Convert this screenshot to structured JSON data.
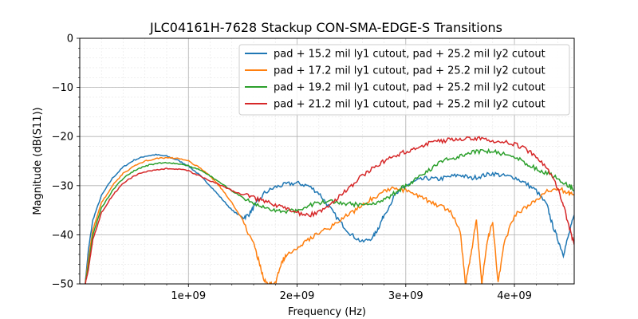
{
  "chart_data": {
    "type": "line",
    "title": "JLC04161H-7628 Stackup CON-SMA-EDGE-S Transitions",
    "xlabel": "Frequency (Hz)",
    "ylabel": "Magnitude (dB(S11))",
    "xlim": [
      0,
      4550000000
    ],
    "ylim": [
      -50,
      0
    ],
    "x_ticks": [
      1000000000,
      2000000000,
      3000000000,
      4000000000
    ],
    "x_tick_labels": [
      "1e+09",
      "2e+09",
      "3e+09",
      "4e+09"
    ],
    "y_ticks": [
      0,
      -10,
      -20,
      -30,
      -40,
      -50
    ],
    "y_tick_labels": [
      "0",
      "−10",
      "−20",
      "−30",
      "−40",
      "−50"
    ],
    "grid": "major and minor",
    "legend_position": "top-right",
    "series": [
      {
        "name": "pad + 15.2 mil ly1 cutout, pad + 25.2 mil ly2 cutout",
        "color": "#1f77b4",
        "x": [
          50000000.0,
          80000000.0,
          120000000.0,
          200000000.0,
          300000000.0,
          400000000.0,
          500000000.0,
          600000000.0,
          700000000.0,
          800000000.0,
          900000000.0,
          1000000000.0,
          1100000000.0,
          1200000000.0,
          1300000000.0,
          1400000000.0,
          1500000000.0,
          1550000000.0,
          1600000000.0,
          1700000000.0,
          1800000000.0,
          1900000000.0,
          2000000000.0,
          2100000000.0,
          2200000000.0,
          2300000000.0,
          2400000000.0,
          2500000000.0,
          2600000000.0,
          2700000000.0,
          2750000000.0,
          2800000000.0,
          2900000000.0,
          3000000000.0,
          3100000000.0,
          3200000000.0,
          3300000000.0,
          3400000000.0,
          3500000000.0,
          3600000000.0,
          3700000000.0,
          3800000000.0,
          3900000000.0,
          4000000000.0,
          4100000000.0,
          4200000000.0,
          4300000000.0,
          4350000000.0,
          4400000000.0,
          4450000000.0,
          4500000000.0,
          4550000000.0
        ],
        "y": [
          -50,
          -43,
          -37,
          -32,
          -28.5,
          -26.2,
          -24.8,
          -24.0,
          -23.7,
          -24.0,
          -24.8,
          -26.0,
          -27.8,
          -30.0,
          -32.5,
          -35.0,
          -36.5,
          -36.0,
          -34.5,
          -31.5,
          -30.3,
          -29.7,
          -29.5,
          -30.0,
          -31.5,
          -34.5,
          -37.5,
          -40.0,
          -41.5,
          -40.5,
          -38.5,
          -36.0,
          -32.0,
          -30.0,
          -29.0,
          -28.5,
          -28.7,
          -28.2,
          -27.8,
          -28.5,
          -28.0,
          -27.5,
          -28.0,
          -28.3,
          -29.5,
          -31.0,
          -34.0,
          -38.0,
          -41.0,
          -44.0,
          -40.0,
          -36.0
        ]
      },
      {
        "name": "pad + 17.2 mil ly1 cutout, pad + 25.2 mil ly2 cutout",
        "color": "#ff7f0e",
        "x": [
          50000000.0,
          80000000.0,
          120000000.0,
          200000000.0,
          300000000.0,
          400000000.0,
          500000000.0,
          600000000.0,
          700000000.0,
          800000000.0,
          900000000.0,
          1000000000.0,
          1100000000.0,
          1200000000.0,
          1300000000.0,
          1400000000.0,
          1500000000.0,
          1600000000.0,
          1650000000.0,
          1700000000.0,
          1750000000.0,
          1800000000.0,
          1850000000.0,
          1900000000.0,
          2000000000.0,
          2100000000.0,
          2200000000.0,
          2300000000.0,
          2400000000.0,
          2500000000.0,
          2600000000.0,
          2700000000.0,
          2800000000.0,
          2900000000.0,
          3000000000.0,
          3100000000.0,
          3200000000.0,
          3300000000.0,
          3400000000.0,
          3500000000.0,
          3550000000.0,
          3600000000.0,
          3650000000.0,
          3700000000.0,
          3750000000.0,
          3800000000.0,
          3850000000.0,
          3900000000.0,
          4000000000.0,
          4100000000.0,
          4200000000.0,
          4300000000.0,
          4400000000.0,
          4500000000.0,
          4550000000.0
        ],
        "y": [
          -50,
          -45,
          -39,
          -33.5,
          -30.0,
          -27.5,
          -26.0,
          -25.0,
          -24.5,
          -24.3,
          -24.4,
          -25.0,
          -26.3,
          -28.0,
          -30.5,
          -33.5,
          -37.0,
          -42.0,
          -45.5,
          -49.5,
          -50,
          -50,
          -46.0,
          -44.0,
          -42.5,
          -41.0,
          -39.5,
          -38.5,
          -37.0,
          -35.5,
          -34.0,
          -32.5,
          -31.0,
          -30.5,
          -31.0,
          -32.0,
          -33.0,
          -34.0,
          -35.0,
          -39.0,
          -50,
          -44.0,
          -37.0,
          -50,
          -41.0,
          -37.5,
          -50,
          -42.0,
          -36.0,
          -34.5,
          -33.0,
          -31.0,
          -30.5,
          -31.5,
          -32.0
        ]
      },
      {
        "name": "pad + 19.2 mil ly1 cutout, pad + 25.2 mil ly2 cutout",
        "color": "#2ca02c",
        "x": [
          50000000.0,
          80000000.0,
          120000000.0,
          200000000.0,
          300000000.0,
          400000000.0,
          500000000.0,
          600000000.0,
          700000000.0,
          800000000.0,
          900000000.0,
          1000000000.0,
          1100000000.0,
          1200000000.0,
          1300000000.0,
          1400000000.0,
          1500000000.0,
          1600000000.0,
          1700000000.0,
          1800000000.0,
          1900000000.0,
          2000000000.0,
          2100000000.0,
          2200000000.0,
          2300000000.0,
          2400000000.0,
          2500000000.0,
          2600000000.0,
          2700000000.0,
          2800000000.0,
          2900000000.0,
          3000000000.0,
          3100000000.0,
          3200000000.0,
          3300000000.0,
          3400000000.0,
          3500000000.0,
          3600000000.0,
          3700000000.0,
          3800000000.0,
          3900000000.0,
          4000000000.0,
          4100000000.0,
          4200000000.0,
          4300000000.0,
          4400000000.0,
          4500000000.0,
          4550000000.0
        ],
        "y": [
          -50,
          -46,
          -40,
          -34.5,
          -31.0,
          -28.5,
          -27.0,
          -26.0,
          -25.5,
          -25.3,
          -25.5,
          -26.0,
          -26.8,
          -28.0,
          -29.5,
          -31.0,
          -32.5,
          -33.8,
          -34.5,
          -35.0,
          -35.3,
          -35.0,
          -34.0,
          -33.5,
          -33.3,
          -33.5,
          -33.8,
          -33.8,
          -33.5,
          -33.0,
          -31.5,
          -30.0,
          -28.5,
          -27.0,
          -25.5,
          -24.5,
          -24.0,
          -23.3,
          -23.0,
          -23.0,
          -23.5,
          -24.0,
          -25.5,
          -26.5,
          -27.5,
          -28.5,
          -30.0,
          -31.0
        ]
      },
      {
        "name": "pad + 21.2 mil ly1 cutout, pad + 25.2 mil ly2 cutout",
        "color": "#d62728",
        "x": [
          50000000.0,
          80000000.0,
          120000000.0,
          200000000.0,
          300000000.0,
          400000000.0,
          500000000.0,
          600000000.0,
          700000000.0,
          800000000.0,
          900000000.0,
          1000000000.0,
          1100000000.0,
          1200000000.0,
          1300000000.0,
          1400000000.0,
          1500000000.0,
          1600000000.0,
          1700000000.0,
          1800000000.0,
          1900000000.0,
          2000000000.0,
          2100000000.0,
          2200000000.0,
          2300000000.0,
          2400000000.0,
          2500000000.0,
          2600000000.0,
          2700000000.0,
          2800000000.0,
          2900000000.0,
          3000000000.0,
          3100000000.0,
          3200000000.0,
          3300000000.0,
          3400000000.0,
          3500000000.0,
          3600000000.0,
          3700000000.0,
          3800000000.0,
          3900000000.0,
          4000000000.0,
          4100000000.0,
          4200000000.0,
          4300000000.0,
          4400000000.0,
          4450000000.0,
          4500000000.0,
          4550000000.0
        ],
        "y": [
          -50,
          -47,
          -41,
          -35.5,
          -32.0,
          -29.5,
          -28.0,
          -27.2,
          -26.8,
          -26.5,
          -26.6,
          -27.0,
          -28.0,
          -29.0,
          -30.0,
          -31.0,
          -31.8,
          -32.5,
          -33.2,
          -34.0,
          -34.8,
          -35.5,
          -36.0,
          -35.5,
          -34.0,
          -32.0,
          -30.0,
          -28.0,
          -26.5,
          -25.0,
          -24.0,
          -23.0,
          -22.3,
          -21.5,
          -21.0,
          -20.7,
          -20.5,
          -20.3,
          -20.3,
          -20.8,
          -21.2,
          -21.5,
          -22.5,
          -24.0,
          -26.5,
          -30.5,
          -34.0,
          -38.0,
          -42.0
        ]
      }
    ]
  }
}
